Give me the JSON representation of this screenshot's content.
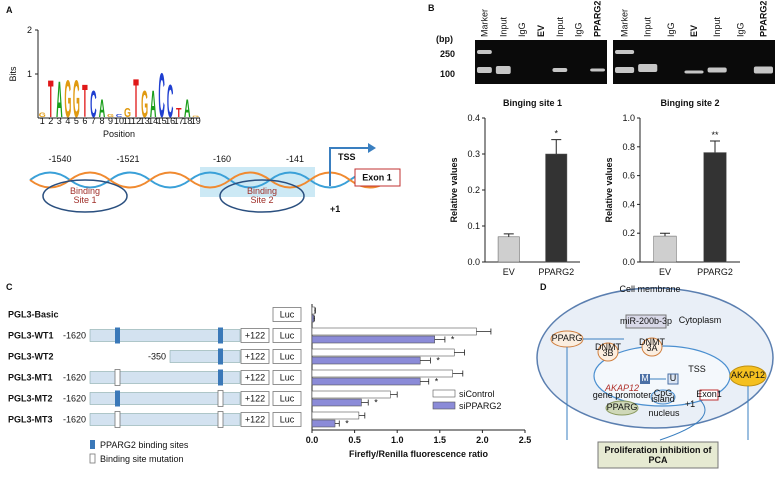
{
  "figure": {
    "panel_labels": [
      "A",
      "B",
      "C",
      "D"
    ]
  },
  "panel_a": {
    "positions": [
      "-1540",
      "-1521",
      "-160",
      "-141"
    ],
    "tss": "TSS",
    "exon": "Exon 1",
    "plus_one": "+1",
    "site_labels": [
      [
        "Binding",
        "Site 1"
      ],
      [
        "Binding",
        "Site 2"
      ]
    ]
  },
  "panel_b": {
    "unit": "(bp)",
    "sizes": [
      "250",
      "100"
    ],
    "gel_lanes": [
      [
        "Marker",
        "Input",
        "IgG",
        "EV",
        "Input",
        "IgG",
        "PPARG2"
      ],
      [
        "Marker",
        "Input",
        "IgG",
        "EV",
        "Input",
        "IgG",
        "PPARG2"
      ]
    ]
  },
  "panel_c": {
    "constructs": [
      {
        "luc": "Luc"
      },
      {
        "start": "-1620",
        "end": "+122",
        "luc": "Luc"
      },
      {
        "start": "-350",
        "end": "+122",
        "luc": "Luc"
      },
      {
        "start": "-1620",
        "end": "+122",
        "luc": "Luc"
      },
      {
        "start": "-1620",
        "end": "+122",
        "luc": "Luc"
      },
      {
        "start": "-1620",
        "end": "+122",
        "luc": "Luc"
      }
    ],
    "legend": [
      "PPARG2 binding sites",
      "Binding site mutation"
    ]
  },
  "panel_d": {
    "membrane": "Cell membrane",
    "cytoplasm": "Cytoplasm",
    "pparg_top": "PPARG",
    "mirna": "miR-200b-3p",
    "dnmt3a": [
      "DNMT",
      "3A"
    ],
    "dnmt3b": [
      "DNMT",
      "3B"
    ],
    "m": "M",
    "u": "U",
    "tss": "TSS",
    "promoter": [
      "AKAP12",
      "gene promoter"
    ],
    "cpg": [
      "CpG",
      "island"
    ],
    "exon": "Exon1",
    "plus_one": "+1",
    "akap12": "AKAP12",
    "nucleus": "nucleus",
    "pparg_bottom": "PPARG",
    "outcome": [
      "Proliferation inhibition of",
      "PCA"
    ]
  },
  "chart_data": [
    {
      "type": "logo",
      "ylabel": "Bits",
      "xlabel": "Position",
      "x": [
        1,
        2,
        3,
        4,
        5,
        6,
        7,
        8,
        9,
        10,
        11,
        12,
        13,
        14,
        15,
        16,
        17,
        18,
        19
      ],
      "letters": [
        "G",
        "T",
        "A",
        "G",
        "G",
        "T",
        "C",
        "A",
        "G",
        "C",
        "G",
        "T",
        "G",
        "A",
        "C",
        "C",
        "T",
        "A",
        "G"
      ],
      "values": [
        0.15,
        1.25,
        1.2,
        1.25,
        1.25,
        1.1,
        0.9,
        0.6,
        0.1,
        0.1,
        0.3,
        1.3,
        0.9,
        0.9,
        1.5,
        1.1,
        0.3,
        0.6,
        0.05
      ],
      "letter_colors": {
        "A": "#1a9e1a",
        "C": "#1f3fd0",
        "G": "#e09a10",
        "T": "#e01818"
      },
      "ylim": [
        0,
        2
      ],
      "yticks": [
        1,
        2
      ]
    },
    {
      "type": "bar",
      "title": "Binging site 1",
      "ylabel": "Relative values",
      "categories": [
        "EV",
        "PPARG2"
      ],
      "values": [
        0.07,
        0.3
      ],
      "errors": [
        0.008,
        0.04
      ],
      "colors": [
        "#cfcfcf",
        "#333333"
      ],
      "ylim": [
        0,
        0.4
      ],
      "yticks": [
        {
          "value": 0,
          "label": "0.0"
        },
        0.1,
        0.2,
        0.3,
        0.4
      ],
      "annotations": [
        null,
        "*"
      ]
    },
    {
      "type": "bar",
      "title": "Binging site 2",
      "ylabel": "Relative values",
      "categories": [
        "EV",
        "PPARG2"
      ],
      "values": [
        0.18,
        0.76
      ],
      "errors": [
        0.02,
        0.08
      ],
      "colors": [
        "#cfcfcf",
        "#333333"
      ],
      "ylim": [
        0,
        1
      ],
      "yticks": [
        {
          "value": 0,
          "label": "0.0"
        },
        0.2,
        0.4,
        0.6,
        0.8,
        {
          "value": 1,
          "label": "1.0"
        }
      ],
      "annotations": [
        null,
        "**"
      ]
    },
    {
      "type": "barh",
      "xlabel": "Firefly/Renilla  fluorescence  ratio",
      "categories": [
        "PGL3-Basic",
        "PGL3-WT1",
        "PGL3-WT2",
        "PGL3-MT1",
        "PGL3-MT2",
        "PGL3-MT3"
      ],
      "series": [
        {
          "name": "siControl",
          "color": "#ffffff",
          "values": [
            0.03,
            1.93,
            1.67,
            1.65,
            0.92,
            0.55
          ],
          "errors": [
            0.01,
            0.17,
            0.12,
            0.12,
            0.08,
            0.07
          ]
        },
        {
          "name": "siPPARG2",
          "color": "#8b8bd8",
          "values": [
            0.02,
            1.44,
            1.27,
            1.27,
            0.58,
            0.27
          ],
          "errors": [
            0.01,
            0.12,
            0.12,
            0.1,
            0.08,
            0.05
          ]
        }
      ],
      "xlim": [
        0,
        2.5
      ],
      "xticks": [
        {
          "value": 0,
          "label": "0.0"
        },
        0.5,
        {
          "value": 1,
          "label": "1.0"
        },
        1.5,
        {
          "value": 2,
          "label": "2.0"
        },
        2.5
      ],
      "annotations": [
        null,
        "*",
        "*",
        "*",
        "*",
        "*"
      ],
      "legend": "lower right"
    }
  ]
}
